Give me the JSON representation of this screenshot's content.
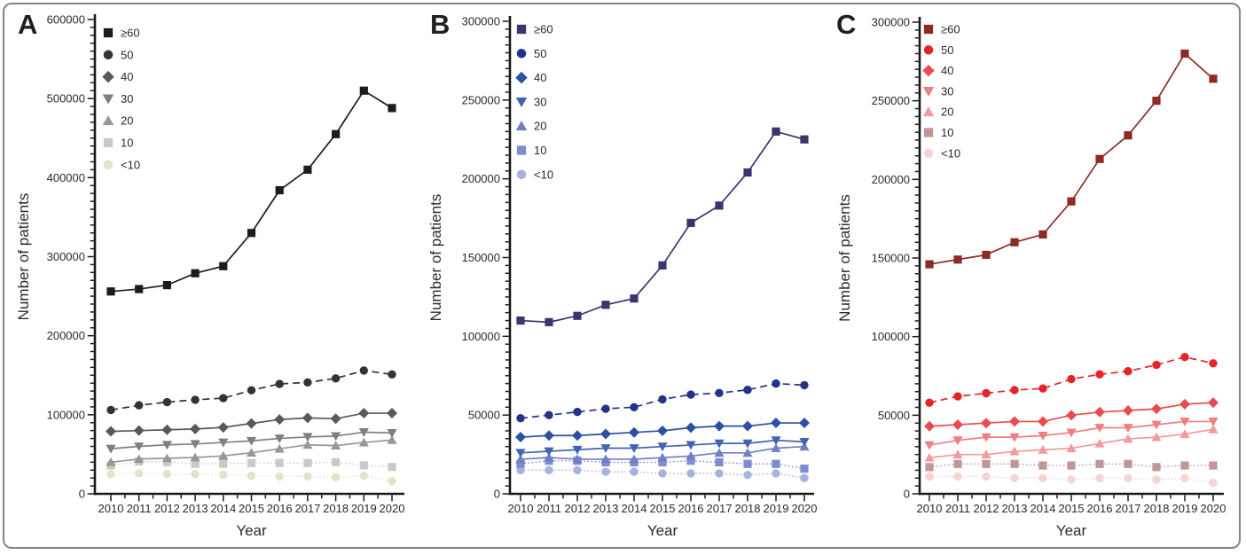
{
  "figure": {
    "border_color": "#848484",
    "background": "#ffffff"
  },
  "chart_data": [
    {
      "type": "line",
      "panel_label": "A",
      "xlabel": "Year",
      "ylabel": "Number of patients",
      "x": [
        2010,
        2011,
        2012,
        2013,
        2014,
        2015,
        2016,
        2017,
        2018,
        2019,
        2020
      ],
      "ylim": [
        0,
        600000
      ],
      "ytick_interval": 100000,
      "ytick_minor": 10000,
      "legend_position": "top-left-inside",
      "grid": false,
      "series": [
        {
          "name": "≥60",
          "marker": "square",
          "line": "solid",
          "color": "#1c1c1c",
          "values": [
            256000,
            259000,
            264000,
            279000,
            288000,
            330000,
            384000,
            410000,
            455000,
            510000,
            488000
          ]
        },
        {
          "name": "50",
          "marker": "circle",
          "line": "dashed",
          "color": "#333333",
          "values": [
            106000,
            112000,
            116000,
            119000,
            121000,
            131000,
            139000,
            141000,
            146000,
            156000,
            151000
          ]
        },
        {
          "name": "40",
          "marker": "diamond",
          "line": "solid",
          "color": "#595959",
          "values": [
            79000,
            80000,
            81000,
            82000,
            84000,
            89000,
            94000,
            96000,
            95000,
            102000,
            102000
          ]
        },
        {
          "name": "30",
          "marker": "triangle-down",
          "line": "solid",
          "color": "#7f7f7f",
          "values": [
            57000,
            60000,
            62000,
            63000,
            65000,
            67000,
            70000,
            72000,
            73000,
            78000,
            77000
          ]
        },
        {
          "name": "20",
          "marker": "triangle-up",
          "line": "solid",
          "color": "#989898",
          "values": [
            40000,
            44000,
            45000,
            46000,
            48000,
            52000,
            57000,
            62000,
            61000,
            65000,
            68000
          ]
        },
        {
          "name": "10",
          "marker": "square",
          "line": "dotted",
          "color": "#c9c9c9",
          "values": [
            36000,
            41000,
            40000,
            38000,
            38000,
            39000,
            39000,
            39000,
            40000,
            36000,
            34000
          ]
        },
        {
          "name": "<10",
          "marker": "circle",
          "line": "dotted",
          "color": "#e6e1c8",
          "values": [
            25000,
            26000,
            25000,
            25000,
            24000,
            23000,
            22000,
            22000,
            21000,
            23000,
            16000
          ]
        }
      ]
    },
    {
      "type": "line",
      "panel_label": "B",
      "xlabel": "Year",
      "ylabel": "Number of patients",
      "x": [
        2010,
        2011,
        2012,
        2013,
        2014,
        2015,
        2016,
        2017,
        2018,
        2019,
        2020
      ],
      "ylim": [
        0,
        300000
      ],
      "ytick_interval": 50000,
      "ytick_minor": 5000,
      "legend_position": "top-left-inside",
      "grid": false,
      "series": [
        {
          "name": "≥60",
          "marker": "square",
          "line": "solid",
          "color": "#37366e",
          "values": [
            110000,
            109000,
            113000,
            120000,
            124000,
            145000,
            172000,
            183000,
            204000,
            230000,
            225000
          ]
        },
        {
          "name": "50",
          "marker": "circle",
          "line": "dashed",
          "color": "#23338b",
          "values": [
            48000,
            50000,
            52000,
            54000,
            55000,
            60000,
            63000,
            64000,
            66000,
            70000,
            69000
          ]
        },
        {
          "name": "40",
          "marker": "diamond",
          "line": "solid",
          "color": "#2a50a1",
          "values": [
            36000,
            37000,
            37000,
            38000,
            39000,
            40000,
            42000,
            43000,
            43000,
            45000,
            45000
          ]
        },
        {
          "name": "30",
          "marker": "triangle-down",
          "line": "solid",
          "color": "#4163b3",
          "values": [
            26000,
            27000,
            28000,
            29000,
            29000,
            30000,
            31000,
            32000,
            32000,
            34000,
            33000
          ]
        },
        {
          "name": "20",
          "marker": "triangle-up",
          "line": "solid",
          "color": "#7080c5",
          "values": [
            22000,
            23000,
            22000,
            22000,
            22000,
            23000,
            24000,
            26000,
            26000,
            29000,
            30000
          ]
        },
        {
          "name": "10",
          "marker": "square",
          "line": "dotted",
          "color": "#7e8dd0",
          "values": [
            19000,
            21000,
            21000,
            20000,
            20000,
            20000,
            21000,
            20000,
            19000,
            19000,
            16000
          ]
        },
        {
          "name": "<10",
          "marker": "circle",
          "line": "dotted",
          "color": "#a9b2dd",
          "values": [
            15000,
            15000,
            15000,
            14000,
            14000,
            13000,
            13000,
            13000,
            12000,
            13000,
            10000
          ]
        }
      ]
    },
    {
      "type": "line",
      "panel_label": "C",
      "xlabel": "Year",
      "ylabel": "Number of patients",
      "x": [
        2010,
        2011,
        2012,
        2013,
        2014,
        2015,
        2016,
        2017,
        2018,
        2019,
        2020
      ],
      "ylim": [
        0,
        300000
      ],
      "ytick_interval": 50000,
      "ytick_minor": 5000,
      "legend_position": "top-left-inside",
      "grid": false,
      "series": [
        {
          "name": "≥60",
          "marker": "square",
          "line": "solid",
          "color": "#8e2a25",
          "values": [
            146000,
            149000,
            152000,
            160000,
            165000,
            186000,
            213000,
            228000,
            250000,
            280000,
            264000
          ]
        },
        {
          "name": "50",
          "marker": "circle",
          "line": "dashed",
          "color": "#e62329",
          "values": [
            58000,
            62000,
            64000,
            66000,
            67000,
            73000,
            76000,
            78000,
            82000,
            87000,
            83000
          ]
        },
        {
          "name": "40",
          "marker": "diamond",
          "line": "solid",
          "color": "#e74c50",
          "values": [
            43000,
            44000,
            45000,
            46000,
            46000,
            50000,
            52000,
            53000,
            54000,
            57000,
            58000
          ]
        },
        {
          "name": "30",
          "marker": "triangle-down",
          "line": "solid",
          "color": "#ef7e80",
          "values": [
            31000,
            34000,
            36000,
            36000,
            37000,
            39000,
            42000,
            42000,
            44000,
            46000,
            46000
          ]
        },
        {
          "name": "20",
          "marker": "triangle-up",
          "line": "solid",
          "color": "#f29b9d",
          "values": [
            23000,
            25000,
            25000,
            27000,
            28000,
            29000,
            32000,
            35000,
            36000,
            38000,
            41000
          ]
        },
        {
          "name": "10",
          "marker": "square",
          "line": "dotted",
          "color": "#c09697",
          "values": [
            17000,
            19000,
            19000,
            19000,
            18000,
            18000,
            19000,
            19000,
            17000,
            18000,
            18000
          ]
        },
        {
          "name": "<10",
          "marker": "circle",
          "line": "dotted",
          "color": "#f4d4d5",
          "values": [
            11000,
            11000,
            11000,
            10000,
            10000,
            9000,
            10000,
            10000,
            9000,
            10000,
            7000
          ]
        }
      ]
    }
  ]
}
